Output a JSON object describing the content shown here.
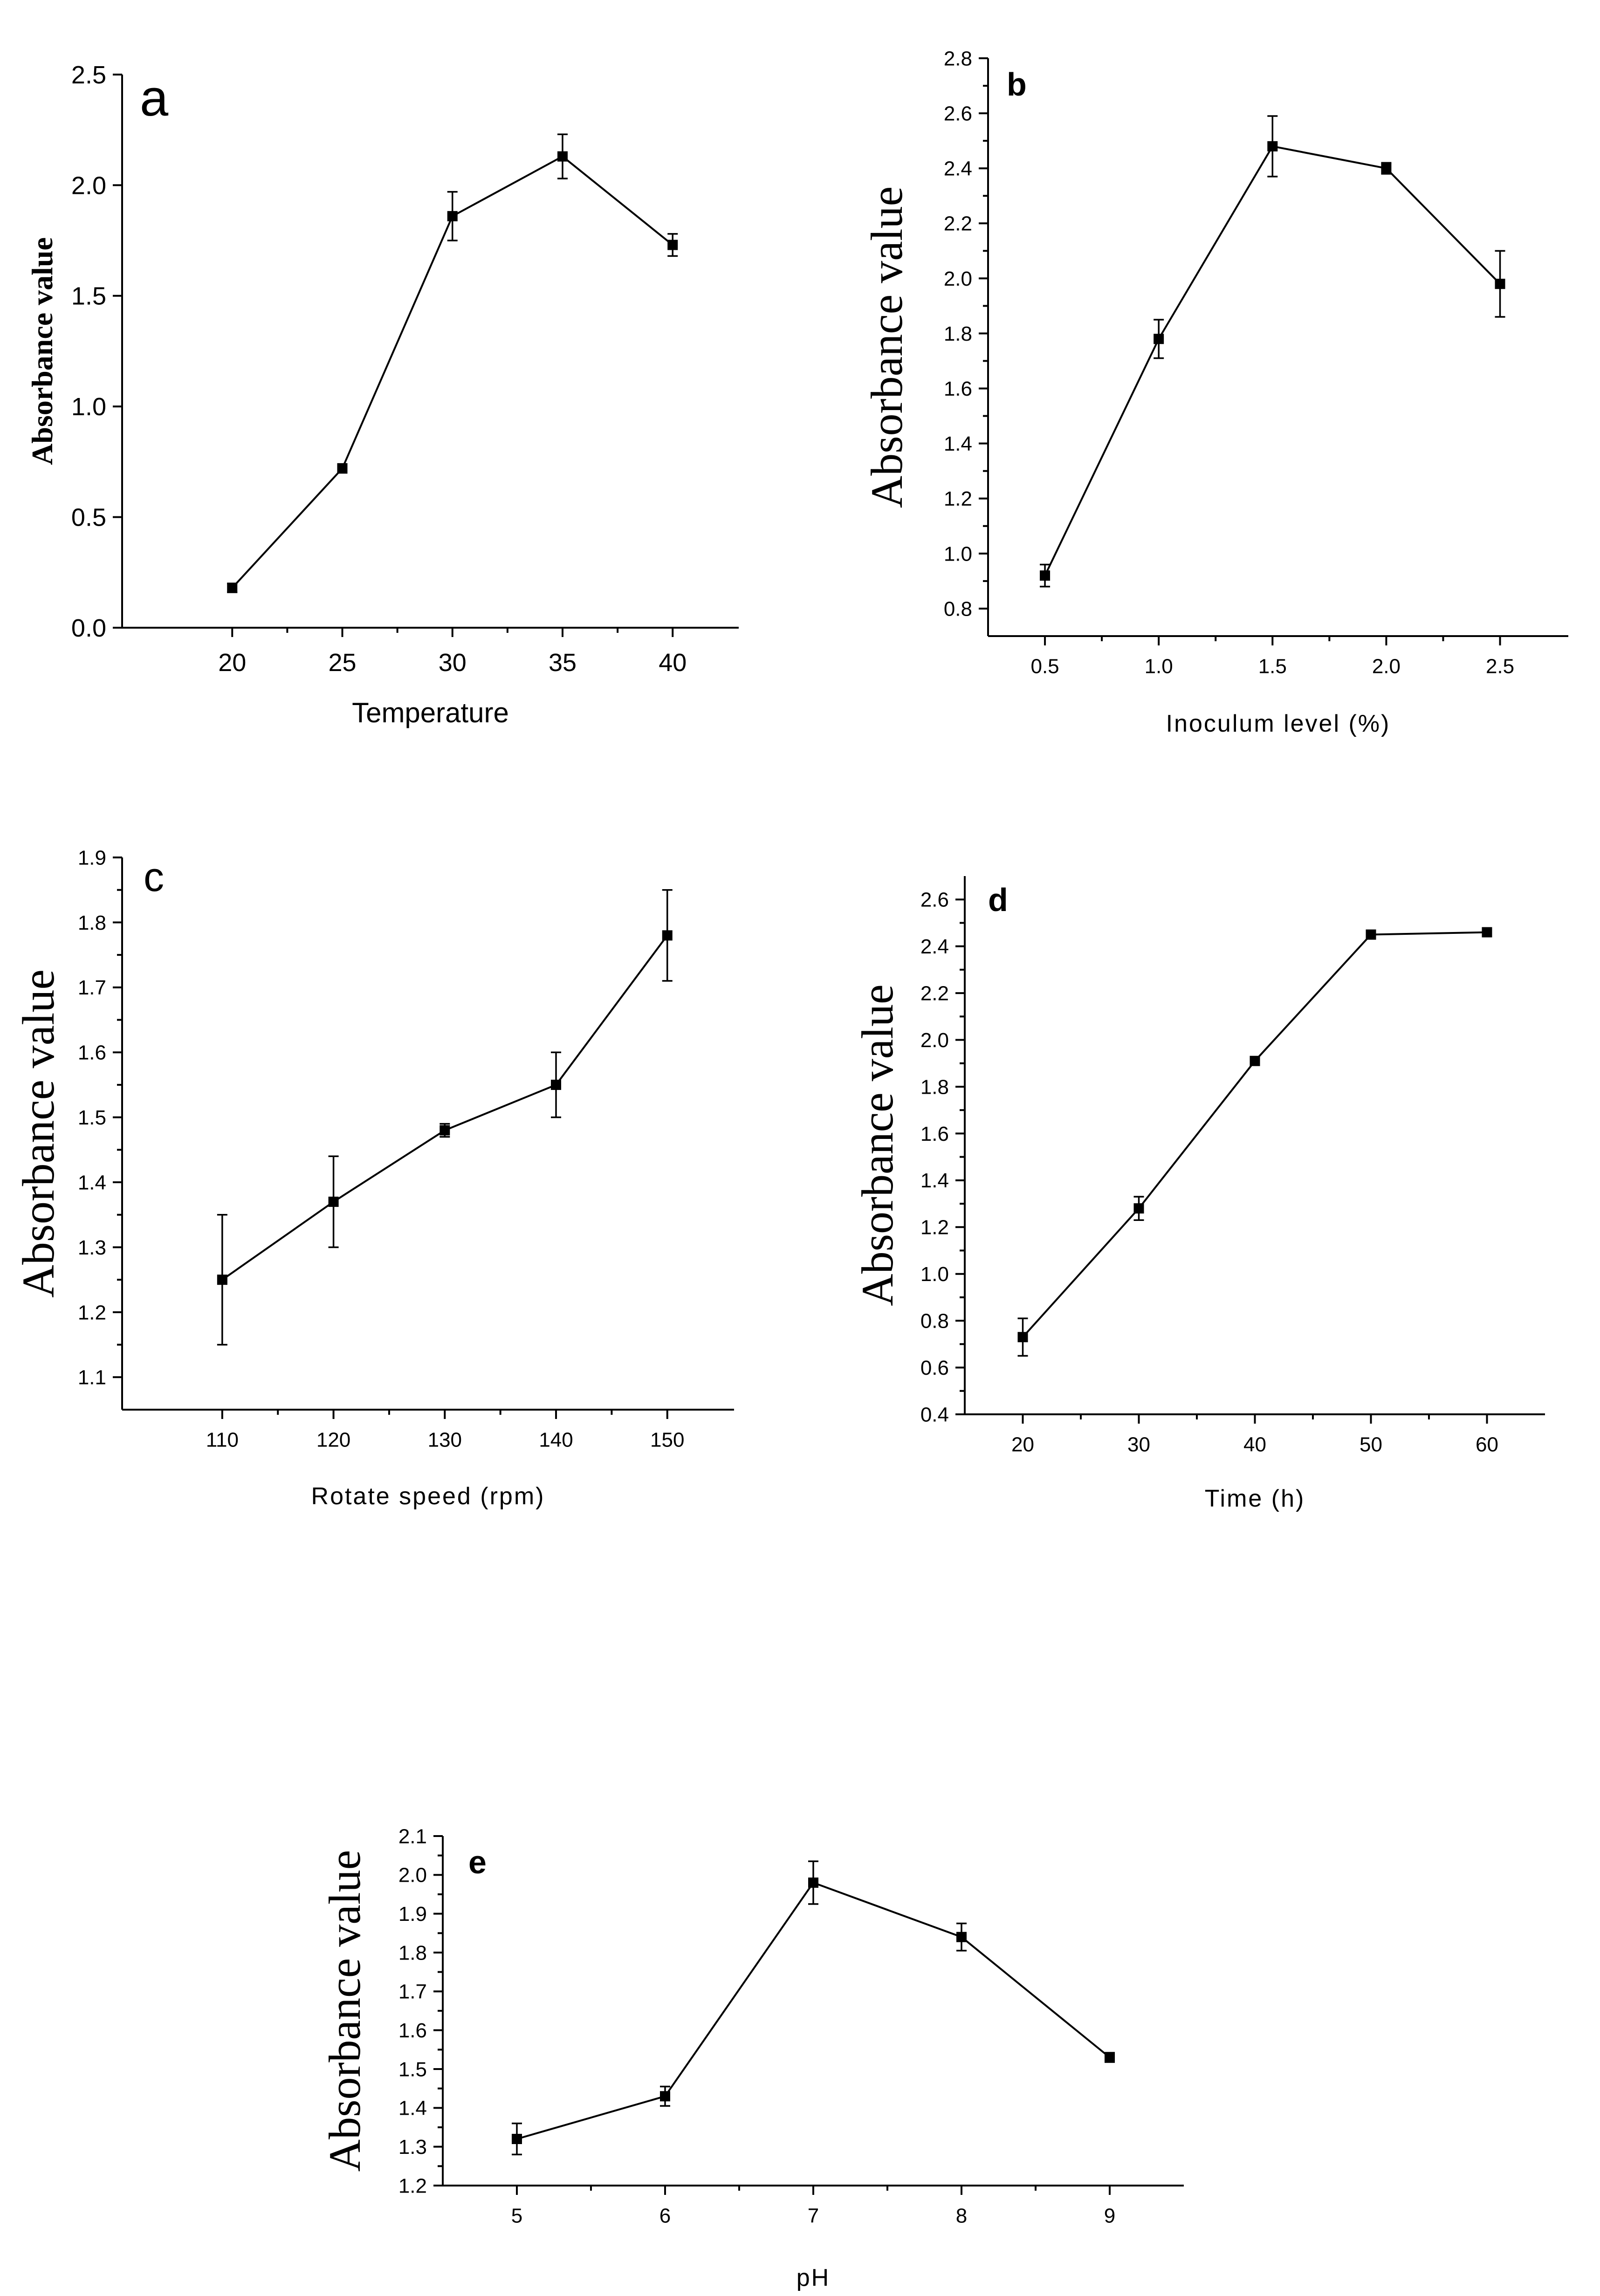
{
  "chart_data": [
    {
      "id": "a",
      "type": "line",
      "panel_label": "a",
      "title": "",
      "xlabel": "Temperature",
      "ylabel": "Absorbance value",
      "x": [
        20,
        25,
        30,
        35,
        40
      ],
      "values": [
        0.18,
        0.72,
        1.86,
        2.13,
        1.73
      ],
      "errors": [
        0.02,
        0.02,
        0.11,
        0.1,
        0.05
      ],
      "xlim": [
        15,
        43
      ],
      "ylim": [
        0,
        2.5
      ],
      "xticks": [
        20,
        25,
        30,
        35,
        40
      ],
      "xtick_labels": [
        "20",
        "25",
        "30",
        "35",
        "40"
      ],
      "yticks": [
        0,
        0.5,
        1,
        1.5,
        2,
        2.5
      ],
      "ytick_labels": [
        "0.0",
        "0.5",
        "1.0",
        "1.5",
        "2.0",
        "2.5"
      ],
      "legend": "none",
      "grid": false
    },
    {
      "id": "b",
      "type": "line",
      "panel_label": "b",
      "title": "",
      "xlabel": "Inoculum level (%)",
      "ylabel": "Absorbance value",
      "x": [
        0.5,
        1.0,
        1.5,
        2.0,
        2.5
      ],
      "values": [
        0.92,
        1.78,
        2.48,
        2.4,
        1.98
      ],
      "errors": [
        0.04,
        0.07,
        0.11,
        0.02,
        0.12
      ],
      "xlim": [
        0.25,
        2.8
      ],
      "ylim": [
        0.7,
        2.8
      ],
      "xticks": [
        0.5,
        1.0,
        1.5,
        2.0,
        2.5
      ],
      "xtick_labels": [
        "0.5",
        "1.0",
        "1.5",
        "2.0",
        "2.5"
      ],
      "yticks": [
        0.8,
        1.0,
        1.2,
        1.4,
        1.6,
        1.8,
        2.0,
        2.2,
        2.4,
        2.6,
        2.8
      ],
      "ytick_labels": [
        "0.8",
        "1.0",
        "1.2",
        "1.4",
        "1.6",
        "1.8",
        "2.0",
        "2.2",
        "2.4",
        "2.6",
        "2.8"
      ],
      "legend": "none",
      "grid": false
    },
    {
      "id": "c",
      "type": "line",
      "panel_label": "c",
      "title": "",
      "xlabel": "Rotate speed (rpm)",
      "ylabel": "Absorbance value",
      "x": [
        110,
        120,
        130,
        140,
        150
      ],
      "values": [
        1.25,
        1.37,
        1.48,
        1.55,
        1.78
      ],
      "errors": [
        0.1,
        0.07,
        0.01,
        0.05,
        0.07
      ],
      "xlim": [
        101,
        156
      ],
      "ylim": [
        1.05,
        1.9
      ],
      "xticks": [
        110,
        120,
        130,
        140,
        150
      ],
      "xtick_labels": [
        "110",
        "120",
        "130",
        "140",
        "150"
      ],
      "yticks": [
        1.1,
        1.2,
        1.3,
        1.4,
        1.5,
        1.6,
        1.7,
        1.8,
        1.9
      ],
      "ytick_labels": [
        "1.1",
        "1.2",
        "1.3",
        "1.4",
        "1.5",
        "1.6",
        "1.7",
        "1.8",
        "1.9"
      ],
      "legend": "none",
      "grid": false
    },
    {
      "id": "d",
      "type": "line",
      "panel_label": "d",
      "title": "",
      "xlabel": "Time (h)",
      "ylabel": "Absorbance value",
      "x": [
        20,
        30,
        40,
        50,
        60
      ],
      "values": [
        0.73,
        1.28,
        1.91,
        2.45,
        2.46
      ],
      "errors": [
        0.08,
        0.05,
        0.01,
        0.01,
        0.01
      ],
      "xlim": [
        15,
        65
      ],
      "ylim": [
        0.4,
        2.7
      ],
      "xticks": [
        20,
        30,
        40,
        50,
        60
      ],
      "xtick_labels": [
        "20",
        "30",
        "40",
        "50",
        "60"
      ],
      "yticks": [
        0.4,
        0.6,
        0.8,
        1.0,
        1.2,
        1.4,
        1.6,
        1.8,
        2.0,
        2.2,
        2.4,
        2.6
      ],
      "ytick_labels": [
        "0.4",
        "0.6",
        "0.8",
        "1.0",
        "1.2",
        "1.4",
        "1.6",
        "1.8",
        "2.0",
        "2.2",
        "2.4",
        "2.6"
      ],
      "legend": "none",
      "grid": false
    },
    {
      "id": "e",
      "type": "line",
      "panel_label": "e",
      "title": "",
      "xlabel": "pH",
      "ylabel": "Absorbance value",
      "x": [
        5,
        6,
        7,
        8,
        9
      ],
      "values": [
        1.32,
        1.43,
        1.98,
        1.84,
        1.53
      ],
      "errors": [
        0.04,
        0.025,
        0.055,
        0.035,
        0.012
      ],
      "xlim": [
        4.5,
        9.5
      ],
      "ylim": [
        1.2,
        2.1
      ],
      "xticks": [
        5,
        6,
        7,
        8,
        9
      ],
      "xtick_labels": [
        "5",
        "6",
        "7",
        "8",
        "9"
      ],
      "yticks": [
        1.2,
        1.3,
        1.4,
        1.5,
        1.6,
        1.7,
        1.8,
        1.9,
        2.0,
        2.1
      ],
      "ytick_labels": [
        "1.2",
        "1.3",
        "1.4",
        "1.5",
        "1.6",
        "1.7",
        "1.8",
        "1.9",
        "2.0",
        "2.1"
      ],
      "legend": "none",
      "grid": false
    }
  ]
}
